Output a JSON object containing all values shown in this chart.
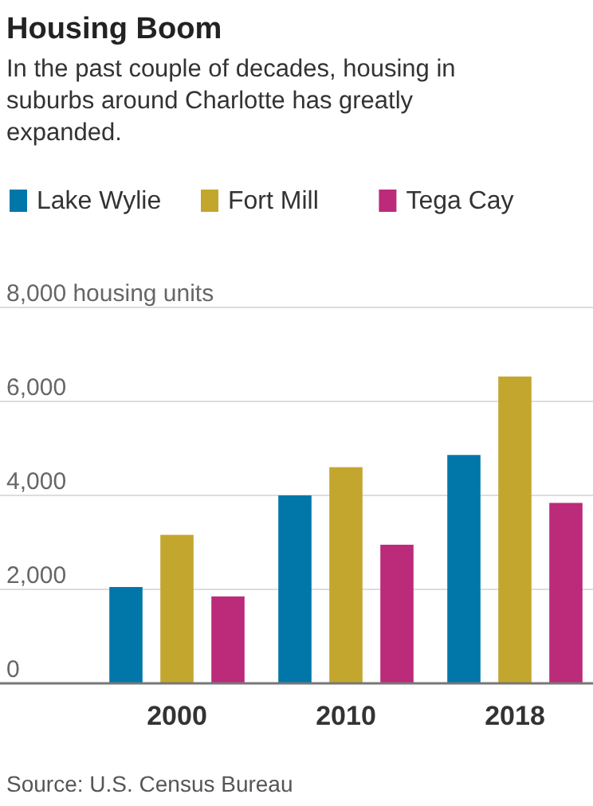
{
  "chart_data": {
    "type": "bar",
    "title": "Housing Boom",
    "subtitle": "In the past couple of decades, housing in suburbs around Charlotte has greatly expanded.",
    "categories": [
      "2000",
      "2010",
      "2018"
    ],
    "series": [
      {
        "name": "Lake Wylie",
        "color": "#0077a8",
        "values": [
          2050,
          4000,
          4860
        ]
      },
      {
        "name": "Fort Mill",
        "color": "#c3a62e",
        "values": [
          3160,
          4600,
          6530
        ]
      },
      {
        "name": "Tega Cay",
        "color": "#bc2a7a",
        "values": [
          1850,
          2950,
          3840
        ]
      }
    ],
    "ylim": [
      0,
      8000
    ],
    "yticks": [
      0,
      {
        "value": 2000,
        "label": "2,000"
      },
      {
        "value": 4000,
        "label": "4,000"
      },
      {
        "value": 8000,
        "label": "8,000 housing units"
      },
      {
        "value": 6000,
        "label": "6,000"
      }
    ],
    "grid": "y",
    "legend": "top",
    "annotations": [
      "Source: U.S. Census Bureau"
    ]
  }
}
